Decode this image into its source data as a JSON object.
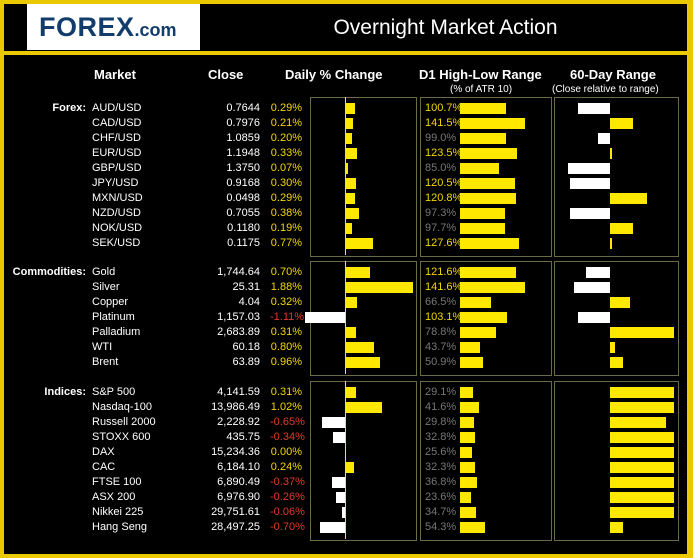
{
  "header": {
    "logo": "FOREX",
    "logo_suffix": ".com",
    "title": "Overnight Market Action"
  },
  "columns": {
    "market": "Market",
    "close": "Close",
    "daily_change": "Daily % Change",
    "range": "D1 High-Low Range",
    "range_sub": "(% of ATR 10)",
    "range60": "60-Day Range",
    "range60_sub": "(Close relative to range)"
  },
  "colors": {
    "positive": "#ffe800",
    "negative": "#ffffff",
    "negative_text": "#e23a2a",
    "dim_text": "#777777"
  },
  "sections": [
    {
      "label": "Forex:",
      "rows": [
        {
          "market": "AUD/USD",
          "close": "0.7644",
          "pct": "0.29%",
          "pct_val": 0.29,
          "atr": "100.7%",
          "atr_val": 100.7,
          "r60": 0.25
        },
        {
          "market": "CAD/USD",
          "close": "0.7976",
          "pct": "0.21%",
          "pct_val": 0.21,
          "atr": "141.5%",
          "atr_val": 141.5,
          "r60": 0.68
        },
        {
          "market": "CHF/USD",
          "close": "1.0859",
          "pct": "0.20%",
          "pct_val": 0.2,
          "atr": "99.0%",
          "atr_val": 99.0,
          "r60": 0.41
        },
        {
          "market": "EUR/USD",
          "close": "1.1948",
          "pct": "0.33%",
          "pct_val": 0.33,
          "atr": "123.5%",
          "atr_val": 123.5,
          "r60": 0.51
        },
        {
          "market": "GBP/USD",
          "close": "1.3750",
          "pct": "0.07%",
          "pct_val": 0.07,
          "atr": "85.0%",
          "atr_val": 85.0,
          "r60": 0.17
        },
        {
          "market": "JPY/USD",
          "close": "0.9168",
          "pct": "0.30%",
          "pct_val": 0.3,
          "atr": "120.5%",
          "atr_val": 120.5,
          "r60": 0.19
        },
        {
          "market": "MXN/USD",
          "close": "0.0498",
          "pct": "0.29%",
          "pct_val": 0.29,
          "atr": "120.8%",
          "atr_val": 120.8,
          "r60": 0.79
        },
        {
          "market": "NZD/USD",
          "close": "0.7055",
          "pct": "0.38%",
          "pct_val": 0.38,
          "atr": "97.3%",
          "atr_val": 97.3,
          "r60": 0.19
        },
        {
          "market": "NOK/USD",
          "close": "0.1180",
          "pct": "0.19%",
          "pct_val": 0.19,
          "atr": "97.7%",
          "atr_val": 97.7,
          "r60": 0.68
        },
        {
          "market": "SEK/USD",
          "close": "0.1175",
          "pct": "0.77%",
          "pct_val": 0.77,
          "atr": "127.6%",
          "atr_val": 127.6,
          "r60": 0.51
        }
      ]
    },
    {
      "label": "Commodities:",
      "rows": [
        {
          "market": "Gold",
          "close": "1,744.64",
          "pct": "0.70%",
          "pct_val": 0.7,
          "atr": "121.6%",
          "atr_val": 121.6,
          "r60": 0.31
        },
        {
          "market": "Silver",
          "close": "25.31",
          "pct": "1.88%",
          "pct_val": 1.88,
          "atr": "141.6%",
          "atr_val": 141.6,
          "r60": 0.22
        },
        {
          "market": "Copper",
          "close": "4.04",
          "pct": "0.32%",
          "pct_val": 0.32,
          "atr": "66.5%",
          "atr_val": 66.5,
          "r60": 0.66
        },
        {
          "market": "Platinum",
          "close": "1,157.03",
          "pct": "-1.11%",
          "pct_val": -1.11,
          "atr": "103.1%",
          "atr_val": 103.1,
          "r60": 0.25
        },
        {
          "market": "Palladium",
          "close": "2,683.89",
          "pct": "0.31%",
          "pct_val": 0.31,
          "atr": "78.8%",
          "atr_val": 78.8,
          "r60": 1.0
        },
        {
          "market": "WTI",
          "close": "60.18",
          "pct": "0.80%",
          "pct_val": 0.8,
          "atr": "43.7%",
          "atr_val": 43.7,
          "r60": 0.54
        },
        {
          "market": "Brent",
          "close": "63.89",
          "pct": "0.96%",
          "pct_val": 0.96,
          "atr": "50.9%",
          "atr_val": 50.9,
          "r60": 0.6
        }
      ]
    },
    {
      "label": "Indices:",
      "rows": [
        {
          "market": "S&P 500",
          "close": "4,141.59",
          "pct": "0.31%",
          "pct_val": 0.31,
          "atr": "29.1%",
          "atr_val": 29.1,
          "r60": 1.0
        },
        {
          "market": "Nasdaq-100",
          "close": "13,986.49",
          "pct": "1.02%",
          "pct_val": 1.02,
          "atr": "41.6%",
          "atr_val": 41.6,
          "r60": 1.0
        },
        {
          "market": "Russell 2000",
          "close": "2,228.92",
          "pct": "-0.65%",
          "pct_val": -0.65,
          "atr": "29.8%",
          "atr_val": 29.8,
          "r60": 0.94
        },
        {
          "market": "STOXX 600",
          "close": "435.75",
          "pct": "-0.34%",
          "pct_val": -0.34,
          "atr": "32.8%",
          "atr_val": 32.8,
          "r60": 1.0
        },
        {
          "market": "DAX",
          "close": "15,234.36",
          "pct": "0.00%",
          "pct_val": 0.0,
          "atr": "25.6%",
          "atr_val": 25.6,
          "r60": 1.0
        },
        {
          "market": "CAC",
          "close": "6,184.10",
          "pct": "0.24%",
          "pct_val": 0.24,
          "atr": "32.3%",
          "atr_val": 32.3,
          "r60": 1.0
        },
        {
          "market": "FTSE 100",
          "close": "6,890.49",
          "pct": "-0.37%",
          "pct_val": -0.37,
          "atr": "36.8%",
          "atr_val": 36.8,
          "r60": 1.0
        },
        {
          "market": "ASX 200",
          "close": "6,976.90",
          "pct": "-0.26%",
          "pct_val": -0.26,
          "atr": "23.6%",
          "atr_val": 23.6,
          "r60": 1.0
        },
        {
          "market": "Nikkei 225",
          "close": "29,751.61",
          "pct": "-0.06%",
          "pct_val": -0.06,
          "atr": "34.7%",
          "atr_val": 34.7,
          "r60": 1.0
        },
        {
          "market": "Hang Seng",
          "close": "28,497.25",
          "pct": "-0.70%",
          "pct_val": -0.7,
          "atr": "54.3%",
          "atr_val": 54.3,
          "r60": 0.6
        }
      ]
    }
  ]
}
